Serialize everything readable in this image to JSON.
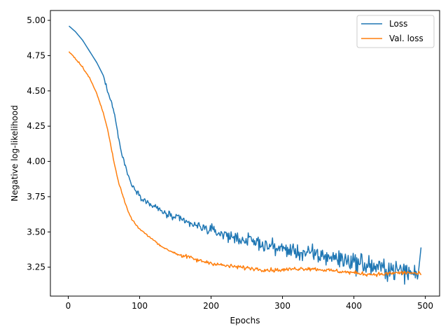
{
  "chart_data": {
    "type": "line",
    "title": "",
    "xlabel": "Epochs",
    "ylabel": "Negative log-likelihood",
    "xlim": [
      -25,
      520
    ],
    "ylim": [
      3.045,
      5.07
    ],
    "xticks": [
      0,
      100,
      200,
      300,
      400,
      500
    ],
    "yticks": [
      3.25,
      3.5,
      3.75,
      4.0,
      4.25,
      4.5,
      4.75,
      5.0
    ],
    "grid": false,
    "legend_position": "top-right",
    "series": [
      {
        "name": "Loss",
        "color": "#1f77b4",
        "keypoints": [
          [
            1,
            4.96
          ],
          [
            10,
            4.92
          ],
          [
            20,
            4.86
          ],
          [
            30,
            4.78
          ],
          [
            40,
            4.7
          ],
          [
            50,
            4.6
          ],
          [
            55,
            4.5
          ],
          [
            60,
            4.43
          ],
          [
            65,
            4.33
          ],
          [
            70,
            4.18
          ],
          [
            75,
            4.05
          ],
          [
            80,
            3.97
          ],
          [
            85,
            3.88
          ],
          [
            90,
            3.83
          ],
          [
            100,
            3.76
          ],
          [
            110,
            3.71
          ],
          [
            120,
            3.68
          ],
          [
            130,
            3.65
          ],
          [
            140,
            3.62
          ],
          [
            150,
            3.6
          ],
          [
            160,
            3.58
          ],
          [
            170,
            3.56
          ],
          [
            180,
            3.54
          ],
          [
            190,
            3.53
          ],
          [
            200,
            3.51
          ],
          [
            220,
            3.48
          ],
          [
            240,
            3.45
          ],
          [
            260,
            3.43
          ],
          [
            280,
            3.4
          ],
          [
            300,
            3.38
          ],
          [
            320,
            3.36
          ],
          [
            340,
            3.34
          ],
          [
            360,
            3.33
          ],
          [
            380,
            3.31
          ],
          [
            400,
            3.29
          ],
          [
            420,
            3.26
          ],
          [
            440,
            3.24
          ],
          [
            460,
            3.23
          ],
          [
            480,
            3.21
          ],
          [
            490,
            3.2
          ]
        ],
        "noise": [
          0,
          0,
          0.008,
          0.012,
          0.015,
          0.02,
          0.022,
          0.025,
          0.028,
          0.03,
          0.035,
          0.035,
          0.04,
          0.045,
          0.05,
          0.05,
          0.055,
          0.05,
          0.05,
          0.05
        ],
        "final_point": [
          494,
          3.39
        ]
      },
      {
        "name": "Val. loss",
        "color": "#ff7f0e",
        "keypoints": [
          [
            1,
            4.78
          ],
          [
            10,
            4.73
          ],
          [
            20,
            4.67
          ],
          [
            30,
            4.59
          ],
          [
            40,
            4.48
          ],
          [
            50,
            4.33
          ],
          [
            55,
            4.23
          ],
          [
            60,
            4.1
          ],
          [
            65,
            3.97
          ],
          [
            70,
            3.86
          ],
          [
            75,
            3.78
          ],
          [
            80,
            3.7
          ],
          [
            85,
            3.63
          ],
          [
            90,
            3.58
          ],
          [
            95,
            3.55
          ],
          [
            100,
            3.52
          ],
          [
            110,
            3.48
          ],
          [
            120,
            3.44
          ],
          [
            130,
            3.4
          ],
          [
            140,
            3.37
          ],
          [
            150,
            3.35
          ],
          [
            160,
            3.33
          ],
          [
            170,
            3.32
          ],
          [
            180,
            3.3
          ],
          [
            190,
            3.29
          ],
          [
            200,
            3.28
          ],
          [
            220,
            3.26
          ],
          [
            240,
            3.25
          ],
          [
            260,
            3.24
          ],
          [
            280,
            3.23
          ],
          [
            300,
            3.23
          ],
          [
            320,
            3.24
          ],
          [
            340,
            3.24
          ],
          [
            360,
            3.23
          ],
          [
            380,
            3.22
          ],
          [
            400,
            3.21
          ],
          [
            420,
            3.2
          ],
          [
            440,
            3.2
          ],
          [
            460,
            3.21
          ],
          [
            480,
            3.21
          ],
          [
            494,
            3.2
          ]
        ]
      }
    ]
  }
}
